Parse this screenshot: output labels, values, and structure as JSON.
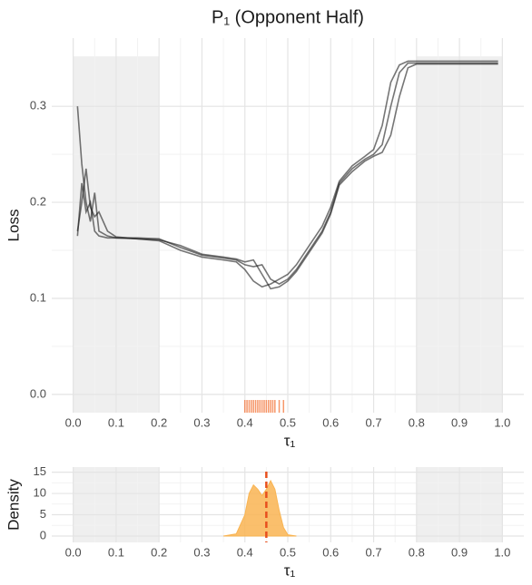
{
  "chart_data": [
    {
      "type": "line",
      "title": "P₁ (Opponent Half)",
      "xlabel": "τ₁",
      "ylabel": "Loss",
      "xlim": [
        -0.05,
        1.05
      ],
      "ylim": [
        -0.019,
        0.371
      ],
      "xticks": [
        {
          "value": 0,
          "label": "0.0"
        },
        0.1,
        0.2,
        0.3,
        0.4,
        0.5,
        0.6,
        0.7,
        0.8,
        0.9,
        {
          "value": 1,
          "label": "1.0"
        }
      ],
      "yticks": [
        {
          "value": 0,
          "label": "0.0"
        },
        0.1,
        0.2,
        0.3
      ],
      "shaded_regions": [
        {
          "xmin": 0,
          "xmax": 0.2,
          "ymax": 0.352
        },
        {
          "xmin": 0.8,
          "xmax": 1.0,
          "ymax": 0.352
        }
      ],
      "shade_color": "#efefef",
      "line_color": "#1a1a1a",
      "grid": true,
      "x": [
        0.01,
        0.02,
        0.03,
        0.04,
        0.05,
        0.06,
        0.08,
        0.1,
        0.15,
        0.2,
        0.25,
        0.3,
        0.35,
        0.38,
        0.4,
        0.42,
        0.44,
        0.46,
        0.48,
        0.5,
        0.52,
        0.55,
        0.58,
        0.6,
        0.62,
        0.65,
        0.68,
        0.7,
        0.72,
        0.74,
        0.76,
        0.78,
        0.8,
        0.9,
        0.99
      ],
      "lines": [
        {
          "values": [
            0.165,
            0.22,
            0.19,
            0.2,
            0.17,
            0.165,
            0.163,
            0.163,
            0.163,
            0.162,
            0.153,
            0.145,
            0.142,
            0.14,
            0.135,
            0.133,
            0.135,
            0.12,
            0.115,
            0.12,
            0.13,
            0.15,
            0.17,
            0.19,
            0.22,
            0.235,
            0.245,
            0.25,
            0.26,
            0.3,
            0.335,
            0.345,
            0.345,
            0.345,
            0.345
          ]
        },
        {
          "values": [
            0.3,
            0.24,
            0.2,
            0.18,
            0.21,
            0.17,
            0.165,
            0.163,
            0.162,
            0.16,
            0.15,
            0.143,
            0.14,
            0.138,
            0.13,
            0.118,
            0.112,
            0.115,
            0.12,
            0.125,
            0.135,
            0.155,
            0.175,
            0.195,
            0.222,
            0.238,
            0.248,
            0.255,
            0.28,
            0.325,
            0.343,
            0.347,
            0.347,
            0.347,
            0.347
          ]
        },
        {
          "values": [
            0.17,
            0.2,
            0.235,
            0.195,
            0.185,
            0.19,
            0.17,
            0.164,
            0.162,
            0.161,
            0.155,
            0.146,
            0.143,
            0.141,
            0.138,
            0.14,
            0.125,
            0.11,
            0.112,
            0.118,
            0.128,
            0.148,
            0.168,
            0.188,
            0.218,
            0.232,
            0.243,
            0.248,
            0.252,
            0.27,
            0.31,
            0.34,
            0.344,
            0.344,
            0.344
          ]
        }
      ],
      "rug": [
        0.4,
        0.405,
        0.41,
        0.415,
        0.42,
        0.425,
        0.43,
        0.435,
        0.44,
        0.445,
        0.45,
        0.455,
        0.46,
        0.465,
        0.47,
        0.48,
        0.49
      ],
      "rug_color": "#f26b2b"
    },
    {
      "type": "area",
      "xlabel": "τ₁",
      "ylabel": "Density",
      "xlim": [
        -0.05,
        1.05
      ],
      "ylim": [
        -1.5,
        16.2
      ],
      "xticks": [
        {
          "value": 0,
          "label": "0.0"
        },
        0.1,
        0.2,
        0.3,
        0.4,
        0.5,
        0.6,
        0.7,
        0.8,
        0.9,
        {
          "value": 1,
          "label": "1.0"
        }
      ],
      "yticks": [
        0,
        5,
        10,
        15
      ],
      "shaded_regions": [
        {
          "xmin": 0,
          "xmax": 0.2,
          "ymax": 16.2
        },
        {
          "xmin": 0.8,
          "xmax": 1.0,
          "ymax": 16.2
        }
      ],
      "shade_color": "#efefef",
      "grid": true,
      "color": "#f9b452",
      "x": [
        0.35,
        0.38,
        0.4,
        0.41,
        0.42,
        0.43,
        0.44,
        0.45,
        0.46,
        0.47,
        0.48,
        0.49,
        0.5,
        0.52
      ],
      "values": [
        0,
        0.5,
        5,
        10,
        12,
        11,
        9.5,
        11,
        13,
        11,
        6,
        2,
        0.3,
        0
      ],
      "vline": 0.45,
      "vline_color": "#e8501e"
    }
  ]
}
